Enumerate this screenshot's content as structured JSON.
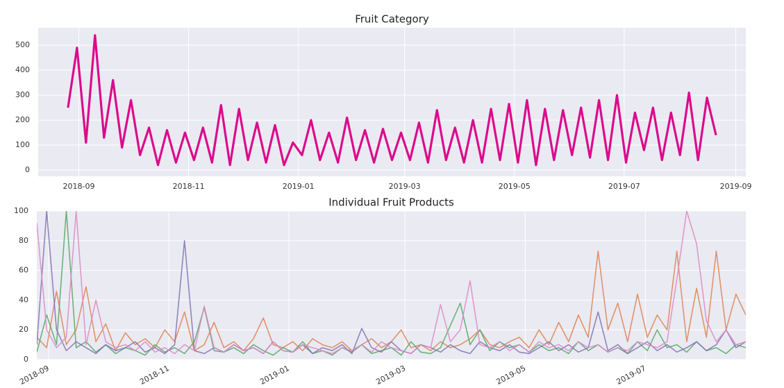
{
  "chart_data": [
    {
      "type": "line",
      "title": "Fruit Category",
      "x": [
        "2018-08-26",
        "2018-08-31",
        "2018-09-05",
        "2018-09-10",
        "2018-09-15",
        "2018-09-20",
        "2018-09-25",
        "2018-09-30",
        "2018-10-05",
        "2018-10-10",
        "2018-10-15",
        "2018-10-20",
        "2018-10-25",
        "2018-10-30",
        "2018-11-04",
        "2018-11-09",
        "2018-11-14",
        "2018-11-19",
        "2018-11-24",
        "2018-11-29",
        "2018-12-04",
        "2018-12-09",
        "2018-12-14",
        "2018-12-19",
        "2018-12-24",
        "2018-12-29",
        "2019-01-03",
        "2019-01-08",
        "2019-01-13",
        "2019-01-18",
        "2019-01-23",
        "2019-01-28",
        "2019-02-02",
        "2019-02-07",
        "2019-02-12",
        "2019-02-17",
        "2019-02-22",
        "2019-02-27",
        "2019-03-04",
        "2019-03-09",
        "2019-03-14",
        "2019-03-19",
        "2019-03-24",
        "2019-03-29",
        "2019-04-03",
        "2019-04-08",
        "2019-04-13",
        "2019-04-18",
        "2019-04-23",
        "2019-04-28",
        "2019-05-03",
        "2019-05-08",
        "2019-05-13",
        "2019-05-18",
        "2019-05-23",
        "2019-05-28",
        "2019-06-02",
        "2019-06-07",
        "2019-06-12",
        "2019-06-17",
        "2019-06-22",
        "2019-06-27",
        "2019-07-02",
        "2019-07-07",
        "2019-07-12",
        "2019-07-17",
        "2019-07-22",
        "2019-07-27",
        "2019-08-01",
        "2019-08-06",
        "2019-08-11",
        "2019-08-16",
        "2019-08-21"
      ],
      "series": [
        {
          "color": "#dc0a8c",
          "values": [
            250,
            490,
            110,
            540,
            130,
            360,
            90,
            280,
            60,
            170,
            20,
            160,
            30,
            150,
            40,
            170,
            30,
            260,
            20,
            245,
            40,
            190,
            30,
            180,
            20,
            110,
            60,
            200,
            40,
            150,
            30,
            210,
            40,
            160,
            30,
            165,
            40,
            150,
            40,
            190,
            30,
            240,
            40,
            170,
            30,
            200,
            30,
            245,
            40,
            265,
            30,
            280,
            20,
            245,
            40,
            240,
            60,
            250,
            50,
            280,
            40,
            300,
            30,
            230,
            80,
            250,
            40,
            230,
            60,
            310,
            40,
            290,
            140
          ]
        }
      ],
      "ylim": [
        -25,
        570
      ],
      "yticks": [
        0,
        100,
        200,
        300,
        400,
        500
      ],
      "xticks": [
        "2018-09",
        "2018-11",
        "2019-01",
        "2019-03",
        "2019-05",
        "2019-07",
        "2019-09"
      ],
      "grid": true
    },
    {
      "type": "line",
      "title": "Individual Fruit Products",
      "x": [
        "2018-08-26",
        "2018-08-31",
        "2018-09-05",
        "2018-09-10",
        "2018-09-15",
        "2018-09-20",
        "2018-09-25",
        "2018-09-30",
        "2018-10-05",
        "2018-10-10",
        "2018-10-15",
        "2018-10-20",
        "2018-10-25",
        "2018-10-30",
        "2018-11-04",
        "2018-11-09",
        "2018-11-14",
        "2018-11-19",
        "2018-11-24",
        "2018-11-29",
        "2018-12-04",
        "2018-12-09",
        "2018-12-14",
        "2018-12-19",
        "2018-12-24",
        "2018-12-29",
        "2019-01-03",
        "2019-01-08",
        "2019-01-13",
        "2019-01-18",
        "2019-01-23",
        "2019-01-28",
        "2019-02-02",
        "2019-02-07",
        "2019-02-12",
        "2019-02-17",
        "2019-02-22",
        "2019-02-27",
        "2019-03-04",
        "2019-03-09",
        "2019-03-14",
        "2019-03-19",
        "2019-03-24",
        "2019-03-29",
        "2019-04-03",
        "2019-04-08",
        "2019-04-13",
        "2019-04-18",
        "2019-04-23",
        "2019-04-28",
        "2019-05-03",
        "2019-05-08",
        "2019-05-13",
        "2019-05-18",
        "2019-05-23",
        "2019-05-28",
        "2019-06-02",
        "2019-06-07",
        "2019-06-12",
        "2019-06-17",
        "2019-06-22",
        "2019-06-27",
        "2019-07-02",
        "2019-07-07",
        "2019-07-12",
        "2019-07-17",
        "2019-07-22",
        "2019-07-27",
        "2019-08-01",
        "2019-08-06",
        "2019-08-11",
        "2019-08-16",
        "2019-08-21"
      ],
      "series": [
        {
          "color": "#dd8452",
          "values": [
            15,
            8,
            46,
            10,
            20,
            49,
            12,
            24,
            6,
            18,
            10,
            14,
            8,
            20,
            12,
            32,
            6,
            10,
            25,
            8,
            12,
            6,
            14,
            28,
            10,
            8,
            12,
            6,
            14,
            10,
            8,
            12,
            6,
            10,
            14,
            8,
            12,
            20,
            8,
            10,
            6,
            12,
            8,
            10,
            14,
            20,
            10,
            8,
            12,
            15,
            8,
            20,
            10,
            25,
            12,
            30,
            15,
            73,
            20,
            38,
            12,
            44,
            15,
            30,
            20,
            73,
            12,
            48,
            15,
            73,
            20,
            44,
            30
          ]
        },
        {
          "color": "#55a868",
          "values": [
            5,
            30,
            10,
            100,
            8,
            12,
            5,
            10,
            4,
            8,
            6,
            3,
            10,
            5,
            8,
            4,
            12,
            35,
            6,
            5,
            8,
            4,
            10,
            6,
            3,
            8,
            5,
            12,
            4,
            6,
            3,
            8,
            5,
            10,
            4,
            6,
            8,
            3,
            12,
            5,
            4,
            8,
            23,
            38,
            10,
            20,
            6,
            12,
            8,
            10,
            5,
            10,
            6,
            8,
            4,
            12,
            6,
            10,
            5,
            8,
            4,
            12,
            6,
            20,
            8,
            10,
            5,
            12,
            6,
            8,
            4,
            10,
            8
          ]
        },
        {
          "color": "#8172b3",
          "values": [
            10,
            100,
            20,
            6,
            12,
            8,
            4,
            10,
            6,
            8,
            12,
            5,
            8,
            4,
            10,
            80,
            6,
            4,
            8,
            5,
            10,
            6,
            8,
            4,
            12,
            6,
            5,
            10,
            4,
            8,
            6,
            10,
            4,
            21,
            8,
            5,
            12,
            6,
            4,
            10,
            8,
            5,
            10,
            6,
            4,
            12,
            8,
            6,
            10,
            5,
            4,
            8,
            12,
            6,
            10,
            5,
            8,
            32,
            6,
            10,
            4,
            8,
            12,
            6,
            10,
            5,
            8,
            12,
            6,
            10,
            20,
            8,
            12
          ]
        },
        {
          "color": "#da8bc3",
          "values": [
            92,
            20,
            8,
            15,
            100,
            10,
            40,
            12,
            8,
            10,
            6,
            12,
            5,
            8,
            4,
            10,
            6,
            36,
            8,
            5,
            10,
            6,
            8,
            4,
            12,
            6,
            5,
            10,
            8,
            6,
            4,
            8,
            6,
            10,
            5,
            12,
            8,
            6,
            4,
            10,
            8,
            37,
            12,
            20,
            53,
            10,
            8,
            12,
            6,
            10,
            5,
            12,
            8,
            10,
            6,
            12,
            8,
            10,
            5,
            8,
            6,
            12,
            10,
            8,
            12,
            54,
            100,
            78,
            26,
            12,
            20,
            10,
            12
          ]
        }
      ],
      "ylim": [
        0,
        100
      ],
      "yticks": [
        0,
        20,
        40,
        60,
        80,
        100
      ],
      "xticks": [
        "2018-09",
        "2018-11",
        "2019-01",
        "2019-03",
        "2019-05",
        "2019-07"
      ],
      "grid": true
    }
  ]
}
